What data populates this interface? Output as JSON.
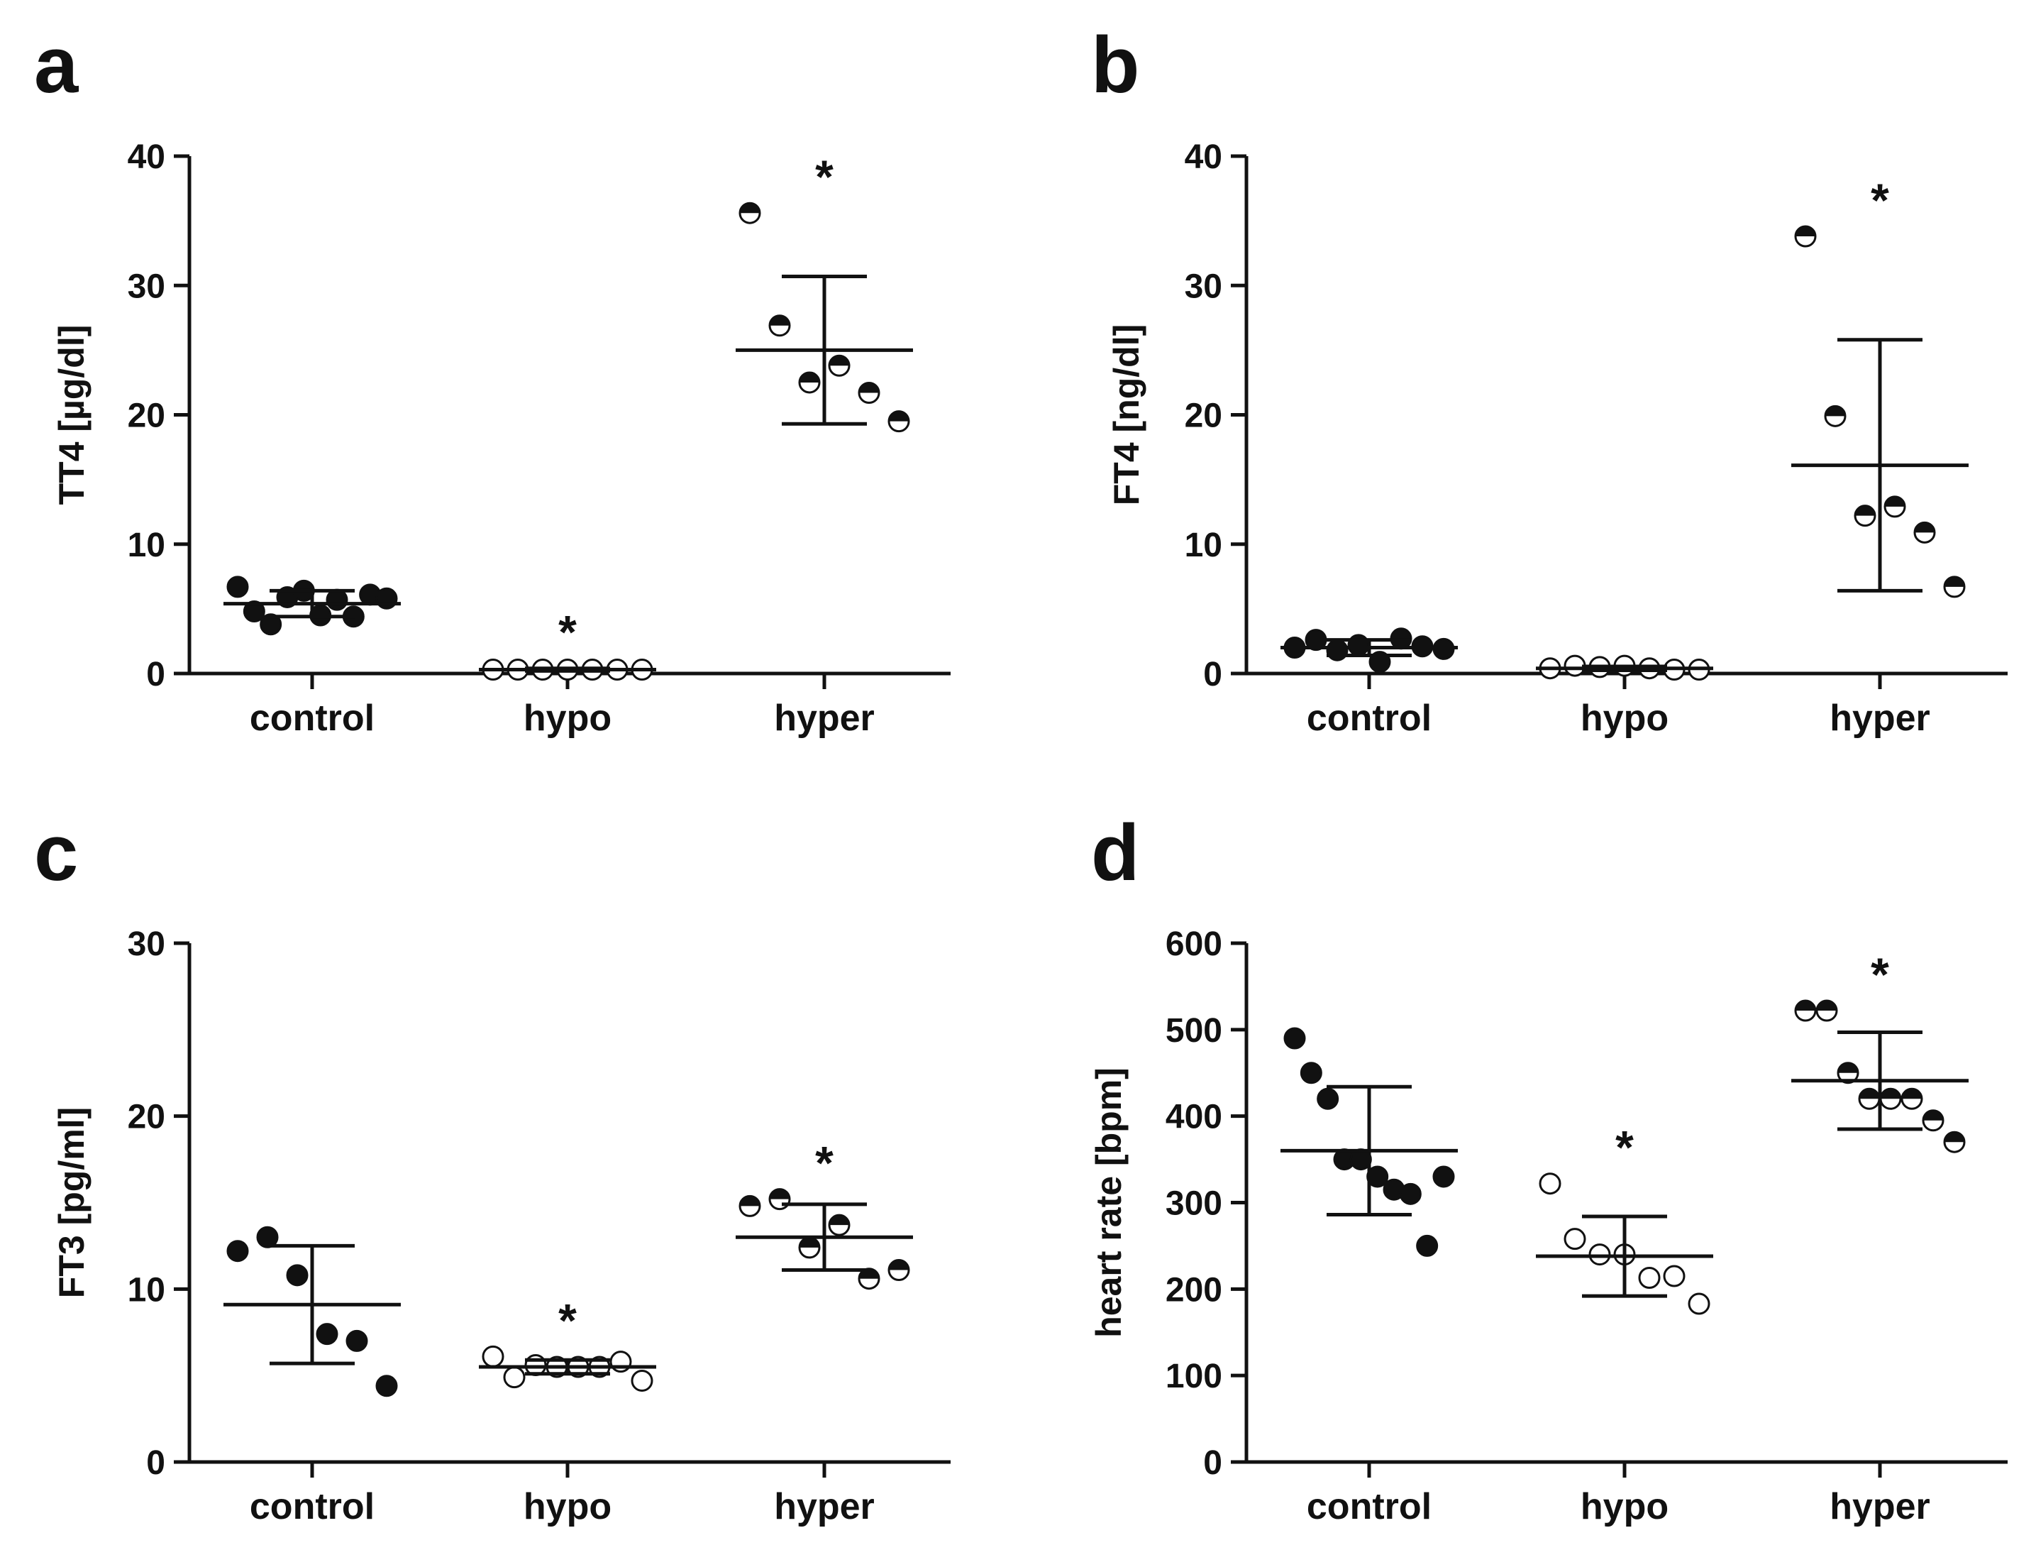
{
  "figure": {
    "colors": {
      "ink": "#111111",
      "background": "#ffffff"
    }
  },
  "chart_data": [
    {
      "panel": "a",
      "type": "scatter",
      "ylabel": "TT4 [µg/dl]",
      "ylim": [
        0,
        40
      ],
      "yticks": [
        0,
        10,
        20,
        30,
        40
      ],
      "ytick_labels": [
        "0",
        "10",
        "20",
        "30",
        "40"
      ],
      "categories": [
        "control",
        "hypo",
        "hyper"
      ],
      "groups": [
        {
          "name": "control",
          "marker": "filled",
          "points": [
            6.7,
            4.8,
            3.8,
            5.9,
            6.4,
            4.5,
            5.7,
            4.4,
            6.1,
            5.8
          ],
          "mean": 5.4,
          "sd": 1.0,
          "significant": false
        },
        {
          "name": "hypo",
          "marker": "open",
          "points": [
            0.3,
            0.3,
            0.3,
            0.3,
            0.3,
            0.3,
            0.3
          ],
          "mean": 0.3,
          "sd": 0.1,
          "significant": true
        },
        {
          "name": "hyper",
          "marker": "half",
          "points": [
            35.6,
            26.9,
            22.5,
            23.8,
            21.7,
            19.5
          ],
          "mean": 25.0,
          "sd": 5.7,
          "significant": true
        }
      ]
    },
    {
      "panel": "b",
      "type": "scatter",
      "ylabel": "FT4 [ng/dl]",
      "ylim": [
        0,
        40
      ],
      "yticks": [
        0,
        10,
        20,
        30,
        40
      ],
      "ytick_labels": [
        "0",
        "10",
        "20",
        "30",
        "40"
      ],
      "categories": [
        "control",
        "hypo",
        "hyper"
      ],
      "groups": [
        {
          "name": "control",
          "marker": "filled",
          "points": [
            2.0,
            2.6,
            1.8,
            2.2,
            0.9,
            2.7,
            2.1,
            1.9
          ],
          "mean": 2.0,
          "sd": 0.6,
          "significant": false
        },
        {
          "name": "hypo",
          "marker": "open",
          "points": [
            0.4,
            0.6,
            0.5,
            0.6,
            0.4,
            0.3,
            0.3
          ],
          "mean": 0.4,
          "sd": 0.15,
          "significant": false
        },
        {
          "name": "hyper",
          "marker": "half",
          "points": [
            33.8,
            19.9,
            12.2,
            12.9,
            10.9,
            6.7
          ],
          "mean": 16.1,
          "sd": 9.7,
          "significant": true
        }
      ]
    },
    {
      "panel": "c",
      "type": "scatter",
      "ylabel": "FT3 [pg/ml]",
      "ylim": [
        0,
        30
      ],
      "yticks": [
        0,
        10,
        20,
        30
      ],
      "ytick_labels": [
        "0",
        "10",
        "20",
        "30"
      ],
      "categories": [
        "control",
        "hypo",
        "hyper"
      ],
      "groups": [
        {
          "name": "control",
          "marker": "filled",
          "points": [
            12.2,
            13.0,
            10.8,
            7.4,
            7.0,
            4.4
          ],
          "mean": 9.1,
          "sd": 3.4,
          "significant": false
        },
        {
          "name": "hypo",
          "marker": "open",
          "points": [
            6.1,
            4.9,
            5.6,
            5.5,
            5.5,
            5.5,
            5.8,
            4.7
          ],
          "mean": 5.5,
          "sd": 0.4,
          "significant": true
        },
        {
          "name": "hyper",
          "marker": "half",
          "points": [
            14.8,
            15.2,
            12.4,
            13.7,
            10.6,
            11.1
          ],
          "mean": 13.0,
          "sd": 1.9,
          "significant": true
        }
      ]
    },
    {
      "panel": "d",
      "type": "scatter",
      "ylabel": "heart rate [bpm]",
      "ylim": [
        0,
        600
      ],
      "yticks": [
        0,
        100,
        200,
        300,
        400,
        500,
        600
      ],
      "ytick_labels": [
        "0",
        "100",
        "200",
        "300",
        "400",
        "500",
        "600"
      ],
      "categories": [
        "control",
        "hypo",
        "hyper"
      ],
      "groups": [
        {
          "name": "control",
          "marker": "filled",
          "points": [
            490,
            450,
            420,
            350,
            350,
            330,
            315,
            310,
            250,
            330
          ],
          "mean": 360,
          "sd": 74,
          "significant": false
        },
        {
          "name": "hypo",
          "marker": "open",
          "points": [
            322,
            258,
            240,
            240,
            213,
            215,
            183
          ],
          "mean": 238,
          "sd": 46,
          "significant": true
        },
        {
          "name": "hyper",
          "marker": "half",
          "points": [
            522,
            522,
            450,
            420,
            420,
            420,
            395,
            370
          ],
          "mean": 441,
          "sd": 56,
          "significant": true
        }
      ]
    }
  ]
}
